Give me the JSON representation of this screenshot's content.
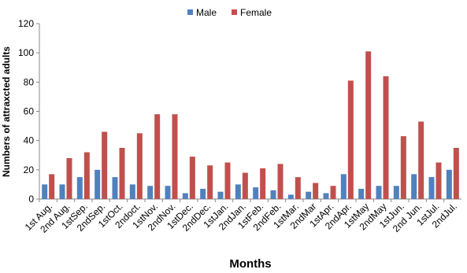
{
  "chart_data": {
    "type": "bar",
    "categories": [
      "1st Aug.",
      "2nd Aug.",
      "1stSep.",
      "2ndSep.",
      "1stOct.",
      "2ndoct.",
      "1stNov.",
      "2ndNov.",
      "1stDec.",
      "2ndDec.",
      "1stJan.",
      "2ndJan.",
      "1stFeb.",
      "2ndFeb.",
      "1stMar.",
      "2ndMar",
      "1stApr.",
      "2ndApr.",
      "1stMay",
      "2ndMay",
      "1stJun.",
      "2nd Jun.",
      "1stJul.",
      "2ndJul."
    ],
    "series": [
      {
        "name": "Male",
        "color": "#4F81BD",
        "values": [
          10,
          10,
          15,
          20,
          15,
          10,
          9,
          9,
          4,
          7,
          5,
          10,
          8,
          6,
          3,
          5,
          4,
          17,
          7,
          9,
          9,
          17,
          15,
          20
        ]
      },
      {
        "name": "Female",
        "color": "#C0504D",
        "values": [
          17,
          28,
          32,
          46,
          35,
          45,
          58,
          58,
          29,
          23,
          25,
          18,
          21,
          24,
          15,
          11,
          9,
          81,
          101,
          84,
          43,
          53,
          25,
          35
        ]
      }
    ],
    "xlabel": "Months",
    "ylabel": "Numbers of attraxcted adults",
    "ylim": [
      0,
      120
    ],
    "yticks": [
      "0",
      "20",
      "40",
      "60",
      "80",
      "100",
      "120"
    ],
    "grid": false,
    "legend": "top"
  }
}
